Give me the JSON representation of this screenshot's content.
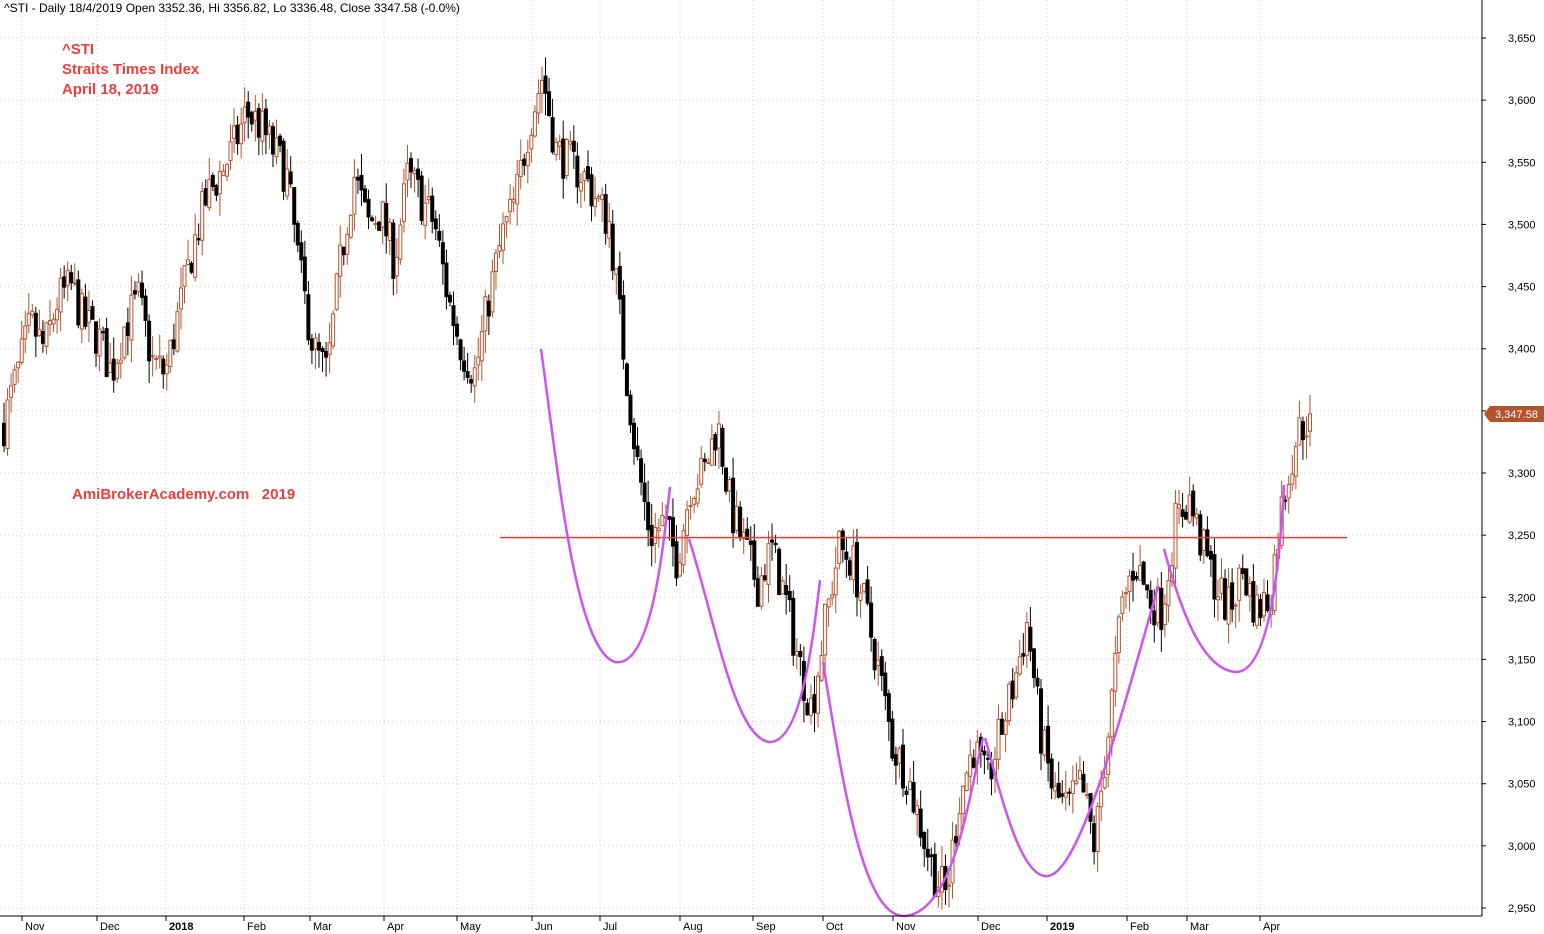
{
  "header": "^STI - Daily 18/4/2019 Open 3352.36, Hi 3356.82, Lo 3336.48, Close 3347.58 (-0.0%)",
  "annotations": {
    "ticker": "^STI",
    "name": "Straits Times Index",
    "date": "April 18, 2019",
    "watermark": "AmiBrokerAcademy.com   2019"
  },
  "last_price_label": "3,347.58",
  "colors": {
    "up_candle": "#b5532e",
    "down_candle": "#000000",
    "resistance_line": "#e8403c",
    "cup_curve": "#cc55ee",
    "price_tag": "#b5532e",
    "annotation_text": "#e8403c"
  },
  "chart_data": {
    "type": "candlestick",
    "title": "",
    "xlabel": "",
    "ylabel": "",
    "ylim": [
      2945,
      3668
    ],
    "yticks": [
      2950,
      3000,
      3050,
      3100,
      3150,
      3200,
      3250,
      3300,
      3350,
      3400,
      3450,
      3500,
      3550,
      3600,
      3650
    ],
    "ytick_labels": [
      "2,950",
      "3,000",
      "3,050",
      "3,100",
      "3,150",
      "3,200",
      "3,250",
      "3,300",
      "3,350",
      "3,400",
      "3,450",
      "3,500",
      "3,550",
      "3,600",
      "3,650"
    ],
    "x_ticks": [
      {
        "label": "Nov",
        "bold": false
      },
      {
        "label": "Dec",
        "bold": false
      },
      {
        "label": "2018",
        "bold": true
      },
      {
        "label": "Feb",
        "bold": false
      },
      {
        "label": "Mar",
        "bold": false
      },
      {
        "label": "Apr",
        "bold": false
      },
      {
        "label": "May",
        "bold": false
      },
      {
        "label": "Jun",
        "bold": false
      },
      {
        "label": "Jul",
        "bold": false
      },
      {
        "label": "Aug",
        "bold": false
      },
      {
        "label": "Sep",
        "bold": false
      },
      {
        "label": "Oct",
        "bold": false
      },
      {
        "label": "Nov",
        "bold": false
      },
      {
        "label": "Dec",
        "bold": false
      },
      {
        "label": "2019",
        "bold": true
      },
      {
        "label": "Feb",
        "bold": false
      },
      {
        "label": "Mar",
        "bold": false
      },
      {
        "label": "Apr",
        "bold": false
      }
    ],
    "close_path": [
      3340,
      3380,
      3420,
      3400,
      3440,
      3450,
      3420,
      3410,
      3380,
      3420,
      3440,
      3390,
      3380,
      3430,
      3480,
      3520,
      3540,
      3560,
      3590,
      3580,
      3560,
      3540,
      3460,
      3400,
      3380,
      3470,
      3540,
      3500,
      3510,
      3470,
      3540,
      3520,
      3500,
      3440,
      3400,
      3380,
      3440,
      3490,
      3520,
      3580,
      3620,
      3560,
      3550,
      3540,
      3520,
      3500,
      3400,
      3310,
      3250,
      3260,
      3230,
      3290,
      3300,
      3340,
      3270,
      3240,
      3210,
      3240,
      3200,
      3150,
      3110,
      3180,
      3240,
      3230,
      3190,
      3140,
      3080,
      3060,
      3020,
      2980,
      2960,
      3040,
      3080,
      3050,
      3090,
      3130,
      3180,
      3090,
      3040,
      3030,
      3050,
      3000,
      3090,
      3190,
      3230,
      3200,
      3190,
      3260,
      3280,
      3240,
      3210,
      3190,
      3220,
      3190,
      3200,
      3280,
      3330,
      3347.58
    ],
    "resistance": 3248,
    "last_close": 3347.58
  }
}
